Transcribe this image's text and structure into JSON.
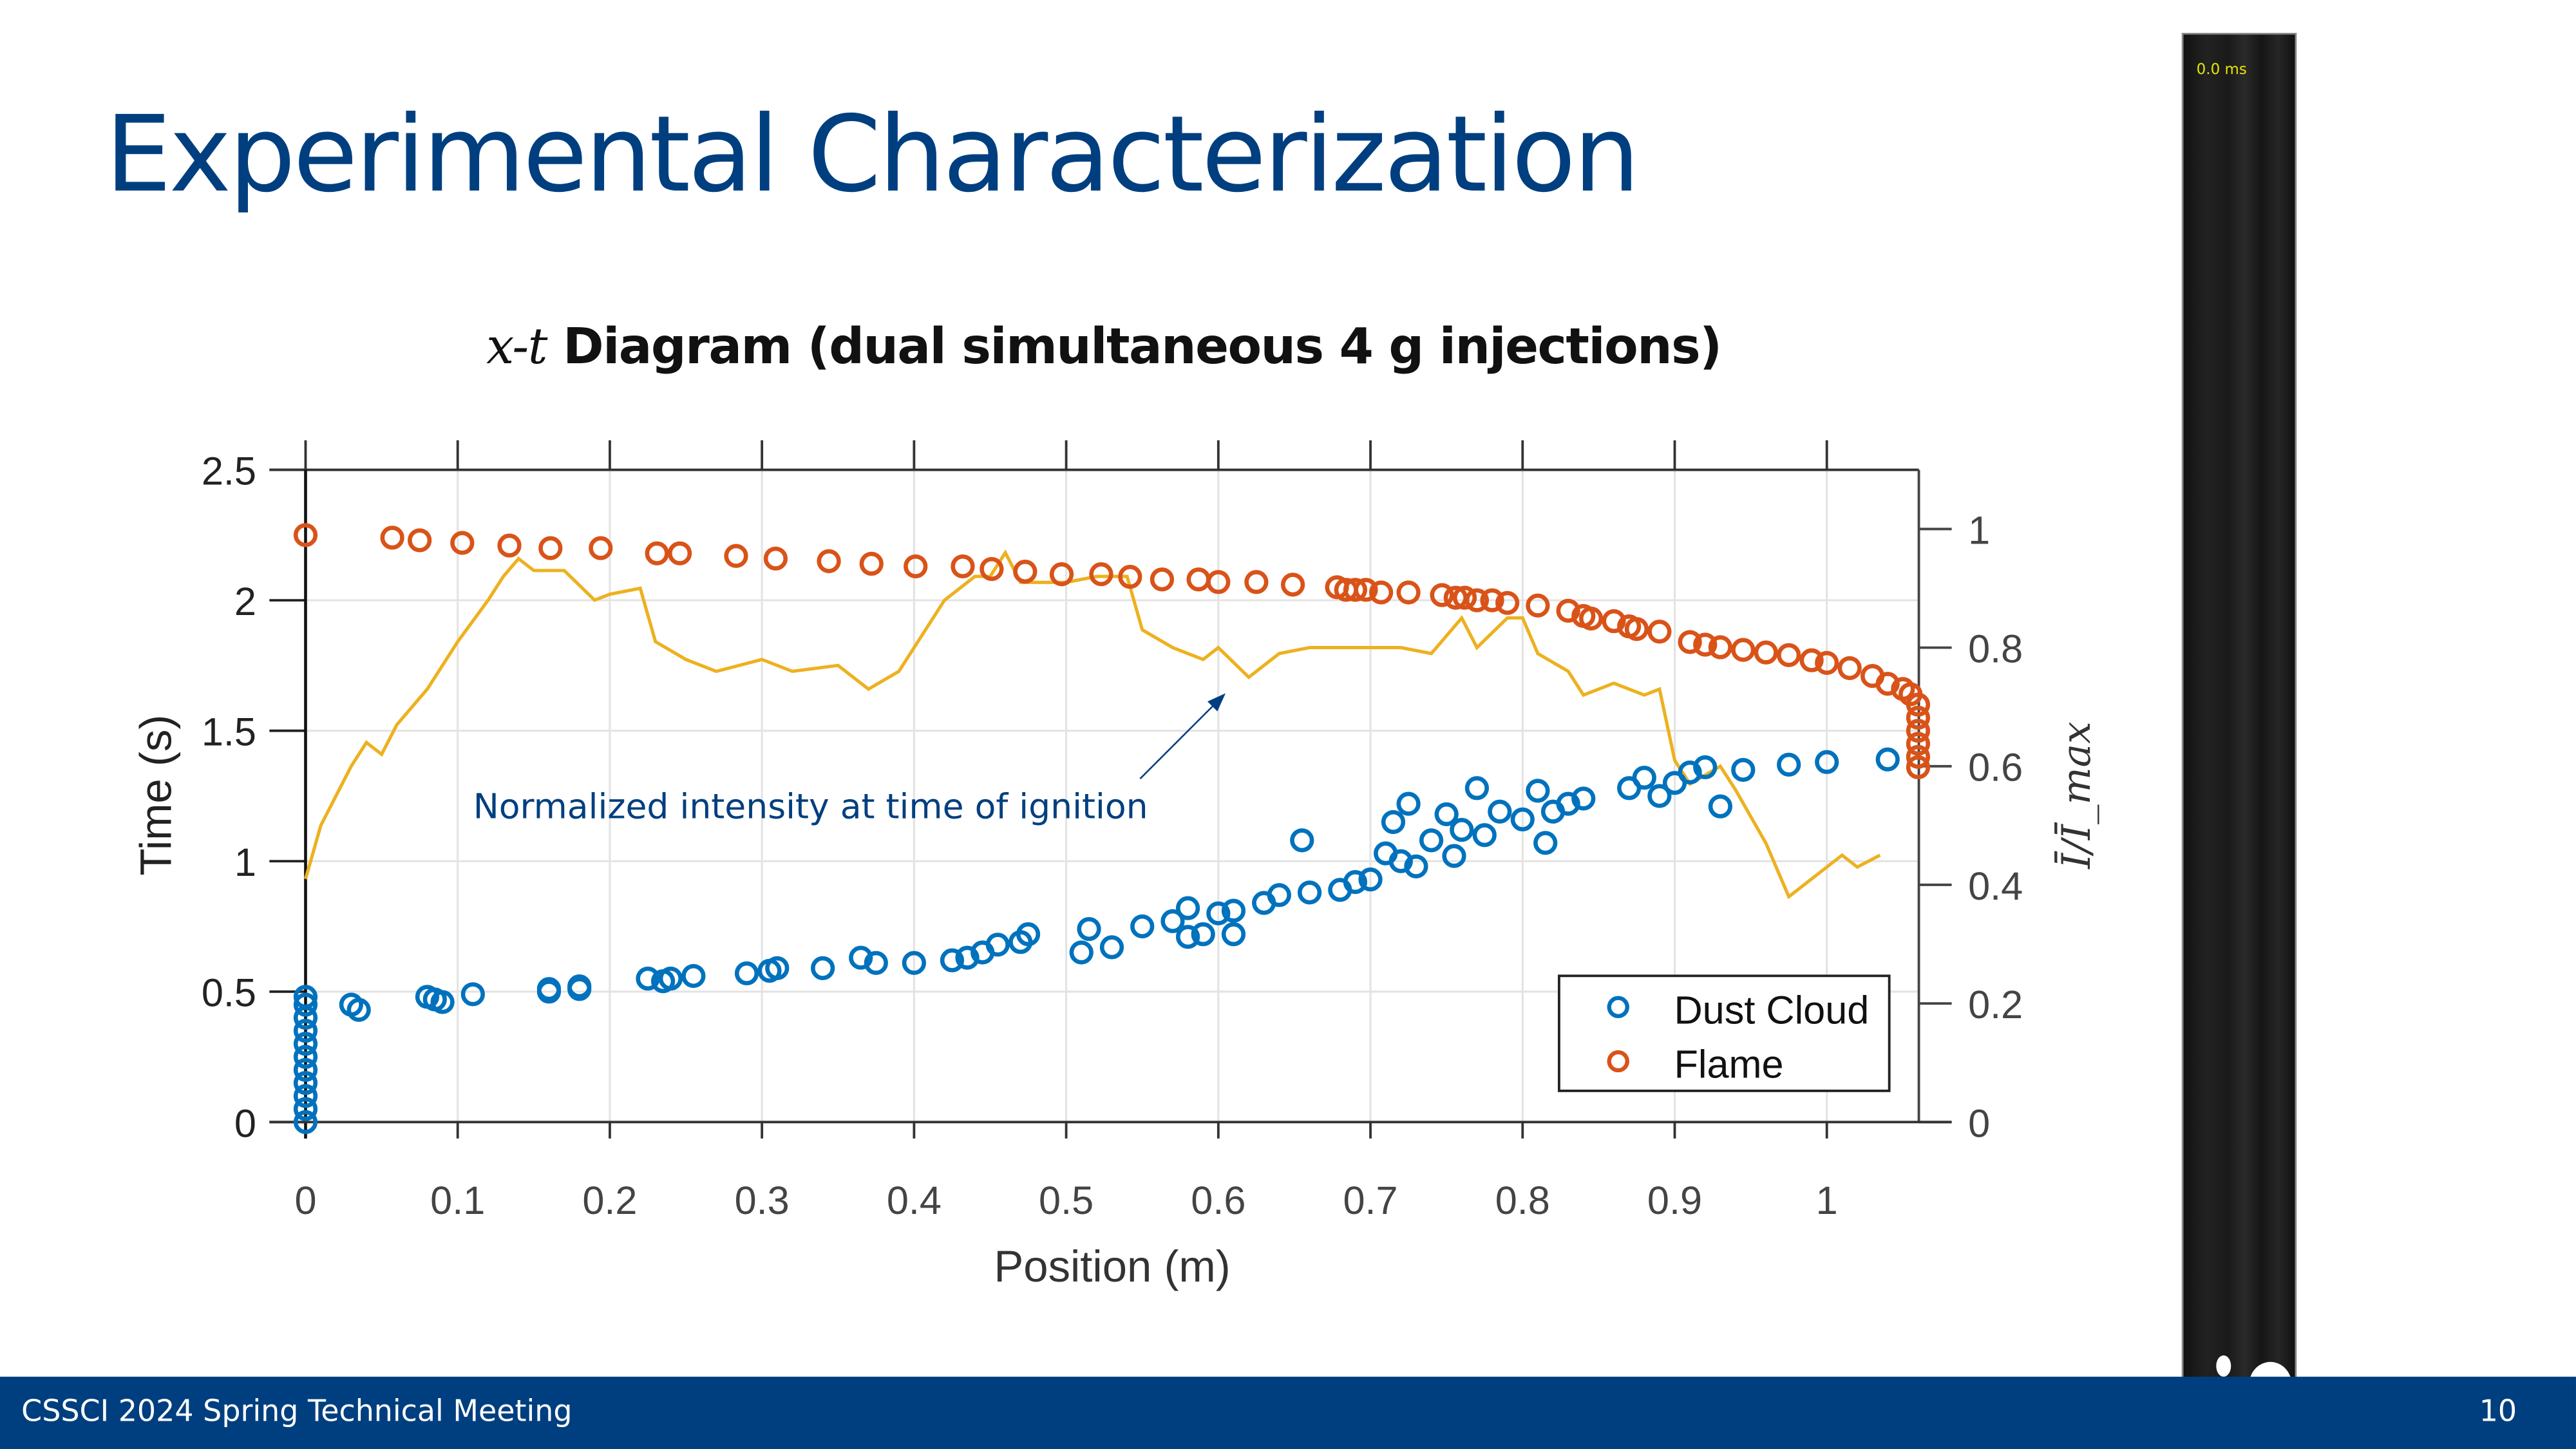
{
  "slide": {
    "title": "Experimental Characterization",
    "subtitle_var": "x-t",
    "subtitle_rest": " Diagram (dual simultaneous 4 g injections)",
    "footer_left": "CSSCI 2024 Spring Technical Meeting",
    "page_number": "10"
  },
  "video_frame": {
    "timestamp": "0.0 ms"
  },
  "colors": {
    "title": "#003f7f",
    "footer": "#003f7f",
    "dust": "#0072bd",
    "flame": "#d95319",
    "intensity": "#edb120",
    "annotation": "#003f7f"
  },
  "chart_data": {
    "type": "scatter",
    "title": "x-t Diagram (dual simultaneous 4 g injections)",
    "xlabel": "Position (m)",
    "ylabel": "Time (s)",
    "y2label": "Ī/Ī_max",
    "xlim": [
      0,
      1.06
    ],
    "ylim": [
      0,
      2.5
    ],
    "y2lim": [
      0,
      1.1
    ],
    "xticks": [
      "0",
      "0.1",
      "0.2",
      "0.3",
      "0.4",
      "0.5",
      "0.6",
      "0.7",
      "0.8",
      "0.9",
      "1"
    ],
    "yticks": [
      "0",
      "0.5",
      "1",
      "1.5",
      "2",
      "2.5"
    ],
    "y2ticks": [
      "0",
      "0.2",
      "0.4",
      "0.6",
      "0.8",
      "1"
    ],
    "grid": true,
    "legend": {
      "placement": "bottom-right",
      "entries": [
        "Dust Cloud",
        "Flame"
      ]
    },
    "annotation": "Normalized intensity at time of ignition",
    "series": [
      {
        "name": "Dust Cloud",
        "axis": "left",
        "marker": "circle",
        "x": [
          0,
          0,
          0,
          0,
          0,
          0,
          0,
          0,
          0,
          0,
          0,
          0.03,
          0.035,
          0.08,
          0.085,
          0.09,
          0.11,
          0.16,
          0.16,
          0.18,
          0.18,
          0.225,
          0.235,
          0.24,
          0.255,
          0.29,
          0.305,
          0.31,
          0.34,
          0.365,
          0.375,
          0.4,
          0.425,
          0.435,
          0.445,
          0.455,
          0.47,
          0.475,
          0.51,
          0.515,
          0.53,
          0.55,
          0.57,
          0.58,
          0.58,
          0.59,
          0.6,
          0.61,
          0.61,
          0.63,
          0.64,
          0.655,
          0.66,
          0.68,
          0.69,
          0.7,
          0.71,
          0.715,
          0.72,
          0.725,
          0.73,
          0.74,
          0.75,
          0.755,
          0.76,
          0.77,
          0.775,
          0.785,
          0.8,
          0.81,
          0.815,
          0.82,
          0.83,
          0.84,
          0.87,
          0.88,
          0.89,
          0.9,
          0.91,
          0.92,
          0.93,
          0.945,
          0.975,
          1.0,
          1.04
        ],
        "y": [
          0,
          0.05,
          0.1,
          0.15,
          0.2,
          0.25,
          0.3,
          0.35,
          0.4,
          0.45,
          0.48,
          0.45,
          0.43,
          0.48,
          0.47,
          0.46,
          0.49,
          0.51,
          0.5,
          0.52,
          0.51,
          0.55,
          0.54,
          0.55,
          0.56,
          0.57,
          0.58,
          0.59,
          0.59,
          0.63,
          0.61,
          0.61,
          0.62,
          0.63,
          0.65,
          0.68,
          0.69,
          0.72,
          0.65,
          0.74,
          0.67,
          0.75,
          0.77,
          0.82,
          0.71,
          0.72,
          0.8,
          0.81,
          0.72,
          0.84,
          0.87,
          1.08,
          0.88,
          0.89,
          0.92,
          0.93,
          1.03,
          1.15,
          1.0,
          1.22,
          0.98,
          1.08,
          1.18,
          1.02,
          1.12,
          1.28,
          1.1,
          1.19,
          1.16,
          1.27,
          1.07,
          1.19,
          1.22,
          1.24,
          1.28,
          1.32,
          1.25,
          1.3,
          1.34,
          1.36,
          1.21,
          1.35,
          1.37,
          1.38,
          1.39
        ]
      },
      {
        "name": "Flame",
        "axis": "left",
        "marker": "circle",
        "x": [
          0,
          0.057,
          0.075,
          0.103,
          0.134,
          0.161,
          0.194,
          0.231,
          0.246,
          0.283,
          0.309,
          0.344,
          0.372,
          0.401,
          0.432,
          0.451,
          0.473,
          0.497,
          0.523,
          0.542,
          0.563,
          0.587,
          0.6,
          0.625,
          0.649,
          0.678,
          0.684,
          0.69,
          0.697,
          0.707,
          0.725,
          0.747,
          0.756,
          0.762,
          0.77,
          0.78,
          0.79,
          0.81,
          0.83,
          0.84,
          0.845,
          0.86,
          0.87,
          0.875,
          0.89,
          0.91,
          0.92,
          0.93,
          0.945,
          0.96,
          0.975,
          0.99,
          1.0,
          1.015,
          1.03,
          1.04,
          1.05,
          1.055,
          1.06,
          1.06,
          1.06,
          1.06,
          1.06,
          1.06
        ],
        "y": [
          2.25,
          2.24,
          2.23,
          2.22,
          2.21,
          2.2,
          2.2,
          2.18,
          2.18,
          2.17,
          2.16,
          2.15,
          2.14,
          2.13,
          2.13,
          2.12,
          2.11,
          2.1,
          2.1,
          2.09,
          2.08,
          2.08,
          2.07,
          2.07,
          2.06,
          2.05,
          2.04,
          2.04,
          2.04,
          2.03,
          2.03,
          2.02,
          2.01,
          2.01,
          2.0,
          2.0,
          1.99,
          1.98,
          1.96,
          1.94,
          1.93,
          1.92,
          1.9,
          1.89,
          1.88,
          1.84,
          1.83,
          1.82,
          1.81,
          1.8,
          1.79,
          1.77,
          1.76,
          1.74,
          1.71,
          1.68,
          1.66,
          1.64,
          1.6,
          1.55,
          1.5,
          1.45,
          1.4,
          1.36
        ]
      },
      {
        "name": "Normalized intensity at time of ignition",
        "axis": "right",
        "type": "line",
        "x": [
          0,
          0.01,
          0.02,
          0.03,
          0.04,
          0.05,
          0.06,
          0.08,
          0.09,
          0.1,
          0.12,
          0.13,
          0.14,
          0.15,
          0.17,
          0.19,
          0.2,
          0.22,
          0.23,
          0.25,
          0.27,
          0.3,
          0.32,
          0.35,
          0.37,
          0.39,
          0.4,
          0.42,
          0.44,
          0.45,
          0.46,
          0.47,
          0.5,
          0.52,
          0.54,
          0.55,
          0.57,
          0.59,
          0.6,
          0.62,
          0.64,
          0.66,
          0.7,
          0.72,
          0.74,
          0.76,
          0.77,
          0.79,
          0.8,
          0.81,
          0.83,
          0.84,
          0.86,
          0.88,
          0.89,
          0.9,
          0.91,
          0.93,
          0.94,
          0.96,
          0.975,
          0.99,
          1.01,
          1.02,
          1.035
        ],
        "y": [
          0.41,
          0.5,
          0.55,
          0.6,
          0.64,
          0.62,
          0.67,
          0.73,
          0.77,
          0.81,
          0.88,
          0.92,
          0.95,
          0.93,
          0.93,
          0.88,
          0.89,
          0.9,
          0.81,
          0.78,
          0.76,
          0.78,
          0.76,
          0.77,
          0.73,
          0.76,
          0.8,
          0.88,
          0.92,
          0.92,
          0.96,
          0.91,
          0.91,
          0.92,
          0.92,
          0.83,
          0.8,
          0.78,
          0.8,
          0.75,
          0.79,
          0.8,
          0.8,
          0.8,
          0.79,
          0.85,
          0.8,
          0.85,
          0.85,
          0.79,
          0.76,
          0.72,
          0.74,
          0.72,
          0.73,
          0.61,
          0.57,
          0.6,
          0.56,
          0.47,
          0.38,
          0.41,
          0.45,
          0.43,
          0.45
        ]
      }
    ]
  }
}
